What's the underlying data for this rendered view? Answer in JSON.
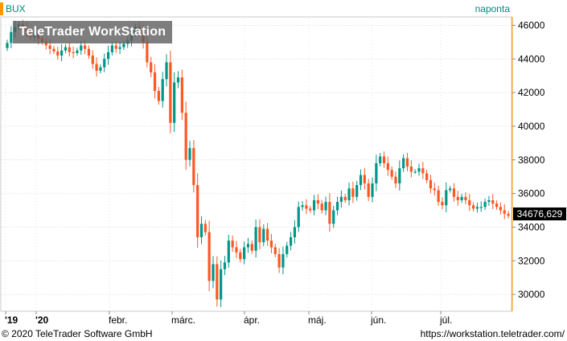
{
  "header": {
    "symbol": "BUX",
    "period": "naponta",
    "watermark": "TeleTrader WorkStation"
  },
  "footer": {
    "copyright": "© 2020 TeleTrader Software GmbH",
    "site": "https://workstation.teletrader.com/"
  },
  "last_value_label": "34676,629",
  "colors": {
    "up": "#009688",
    "down": "#ff5722",
    "price_axis_edge": "#ff9800"
  },
  "chart_data": {
    "type": "candlestick",
    "x_tick_labels": [
      "'19",
      "'20",
      "febr.",
      "márc.",
      "ápr.",
      "máj.",
      "jún.",
      "júl."
    ],
    "y_ticks": [
      30000,
      32000,
      34000,
      36000,
      38000,
      40000,
      42000,
      44000,
      46000
    ],
    "y_tick_labels": [
      "30000",
      "32000",
      "34000",
      "36000",
      "38000",
      "40000",
      "42000",
      "44000",
      "46000"
    ],
    "ylim": [
      29000,
      46500
    ],
    "last_value": 34676.629,
    "grid": true,
    "close": [
      44950,
      45600,
      45900,
      46050,
      45800,
      45600,
      45300,
      45500,
      45200,
      45000,
      44800,
      44600,
      44450,
      44200,
      44500,
      44700,
      44400,
      44350,
      44500,
      44800,
      44600,
      44200,
      43700,
      43300,
      43500,
      44000,
      44400,
      44800,
      44600,
      44700,
      44900,
      45100,
      45500,
      45900,
      45600,
      45000,
      43800,
      43200,
      42100,
      41500,
      42800,
      43800,
      40200,
      42600,
      42900,
      40800,
      38000,
      38700,
      36500,
      33400,
      34200,
      33700,
      30800,
      31800,
      29700,
      31500,
      31900,
      33200,
      32800,
      32500,
      32100,
      32800,
      33000,
      32600,
      34000,
      33100,
      33900,
      33200,
      32800,
      32400,
      31600,
      32400,
      32900,
      33400,
      34000,
      35200,
      35300,
      35100,
      35000,
      35600,
      35400,
      35000,
      35500,
      34200,
      35000,
      35500,
      35800,
      35600,
      36300,
      35800,
      36500,
      37100,
      36600,
      35800,
      36600,
      37800,
      38200,
      37800,
      37400,
      37000,
      36600,
      37500,
      38100,
      37600,
      37300,
      37300,
      37500,
      37200,
      36800,
      36300,
      36200,
      35500,
      35300,
      36200,
      36300,
      35800,
      35600,
      35800,
      35600,
      35300,
      35100,
      35200,
      35200,
      35500,
      35600,
      35400,
      35200,
      35000,
      34800,
      34676.629
    ]
  }
}
